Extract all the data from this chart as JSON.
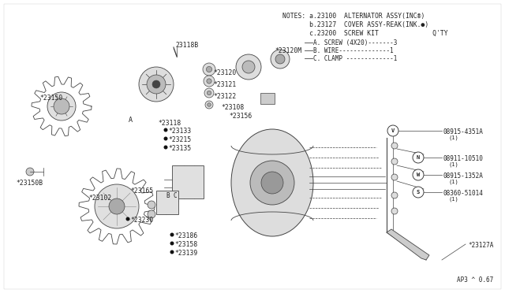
{
  "bg_color": "#ffffff",
  "line_color": "#444444",
  "text_color": "#222222",
  "footer": "AP3 ^ 0.67",
  "notes": [
    "NOTES: a.23100  ALTERNATOR ASSY(INC®)",
    "       b.23127  COVER ASSY-REAK(INK.●)",
    "       c.23200  SCREW KIT              Q'TY"
  ],
  "screw_kit": [
    [
      "A. SCREW (4X20)-------3"
    ],
    [
      "B. WIRE--------------1"
    ],
    [
      "C. CLAMP-------------1"
    ]
  ],
  "hw_labels": [
    {
      "sym": "V",
      "part": "08915-4351A",
      "qty": "(1)"
    },
    {
      "sym": "N",
      "part": "08911-10510",
      "qty": "(1)"
    },
    {
      "sym": "W",
      "part": "08915-1352A",
      "qty": "(1)"
    },
    {
      "sym": "S",
      "part": "08360-51014",
      "qty": "(1)"
    }
  ]
}
